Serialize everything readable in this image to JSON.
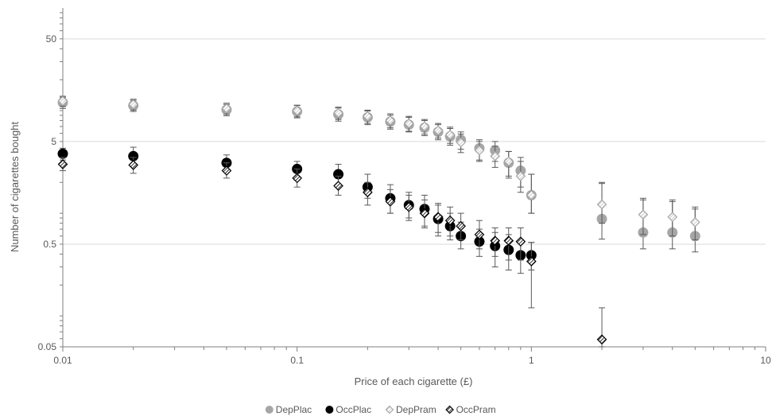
{
  "chart_data": {
    "type": "scatter",
    "title": "",
    "xlabel": "Price of each cigarette (£)",
    "ylabel": "Number of cigarettes bought",
    "x_scale": "log",
    "y_scale": "log",
    "xlim": [
      0.01,
      10
    ],
    "ylim": [
      0.05,
      100
    ],
    "x_ticks": [
      0.01,
      0.1,
      1,
      10
    ],
    "x_tick_labels": [
      "0.01",
      "0.1",
      "1",
      "10"
    ],
    "y_ticks": [
      0.05,
      0.5,
      5,
      50
    ],
    "y_tick_labels": [
      "0.05",
      "0.5",
      "5",
      "50"
    ],
    "grid": "horizontal major",
    "legend_position": "bottom",
    "series": [
      {
        "name": "DepPlac",
        "marker": "circle",
        "color": "#a6a6a6",
        "points": [
          {
            "x": 0.01,
            "y": 12.0,
            "lo": 10.5,
            "hi": 13.5
          },
          {
            "x": 0.02,
            "y": 11.2,
            "lo": 9.8,
            "hi": 12.6
          },
          {
            "x": 0.05,
            "y": 10.2,
            "lo": 8.9,
            "hi": 11.5
          },
          {
            "x": 0.1,
            "y": 9.8,
            "lo": 8.5,
            "hi": 11.2
          },
          {
            "x": 0.15,
            "y": 9.2,
            "lo": 7.9,
            "hi": 10.6
          },
          {
            "x": 0.2,
            "y": 8.6,
            "lo": 7.3,
            "hi": 9.9
          },
          {
            "x": 0.25,
            "y": 7.8,
            "lo": 6.6,
            "hi": 9.0
          },
          {
            "x": 0.3,
            "y": 7.3,
            "lo": 6.2,
            "hi": 8.6
          },
          {
            "x": 0.35,
            "y": 6.8,
            "lo": 5.7,
            "hi": 8.0
          },
          {
            "x": 0.4,
            "y": 6.2,
            "lo": 5.2,
            "hi": 7.3
          },
          {
            "x": 0.45,
            "y": 5.6,
            "lo": 4.6,
            "hi": 6.7
          },
          {
            "x": 0.5,
            "y": 5.2,
            "lo": 4.2,
            "hi": 6.2
          },
          {
            "x": 0.6,
            "y": 4.3,
            "lo": 3.3,
            "hi": 5.2
          },
          {
            "x": 0.7,
            "y": 4.1,
            "lo": 3.2,
            "hi": 5.0
          },
          {
            "x": 0.8,
            "y": 3.1,
            "lo": 2.2,
            "hi": 4.0
          },
          {
            "x": 0.9,
            "y": 2.6,
            "lo": 1.8,
            "hi": 3.5
          },
          {
            "x": 1.0,
            "y": 1.5,
            "lo": 1.0,
            "hi": 2.4
          },
          {
            "x": 2.0,
            "y": 0.88,
            "lo": 0.56,
            "hi": 2.0
          },
          {
            "x": 3.0,
            "y": 0.65,
            "lo": 0.45,
            "hi": 1.35
          },
          {
            "x": 4.0,
            "y": 0.65,
            "lo": 0.45,
            "hi": 1.3
          },
          {
            "x": 5.0,
            "y": 0.6,
            "lo": 0.42,
            "hi": 1.1
          }
        ]
      },
      {
        "name": "OccPlac",
        "marker": "circle",
        "color": "#000000",
        "points": [
          {
            "x": 0.01,
            "y": 3.8,
            "lo": 3.3,
            "hi": 4.3
          },
          {
            "x": 0.02,
            "y": 3.6,
            "lo": 3.0,
            "hi": 4.4
          },
          {
            "x": 0.05,
            "y": 3.1,
            "lo": 2.6,
            "hi": 3.7
          },
          {
            "x": 0.1,
            "y": 2.7,
            "lo": 2.1,
            "hi": 3.2
          },
          {
            "x": 0.15,
            "y": 2.4,
            "lo": 1.9,
            "hi": 3.0
          },
          {
            "x": 0.2,
            "y": 1.8,
            "lo": 1.4,
            "hi": 2.4
          },
          {
            "x": 0.25,
            "y": 1.4,
            "lo": 1.0,
            "hi": 1.9
          },
          {
            "x": 0.3,
            "y": 1.2,
            "lo": 0.9,
            "hi": 1.6
          },
          {
            "x": 0.35,
            "y": 1.1,
            "lo": 0.75,
            "hi": 1.5
          },
          {
            "x": 0.4,
            "y": 0.88,
            "lo": 0.6,
            "hi": 1.2
          },
          {
            "x": 0.45,
            "y": 0.75,
            "lo": 0.55,
            "hi": 1.0
          },
          {
            "x": 0.5,
            "y": 0.6,
            "lo": 0.45,
            "hi": 0.82
          },
          {
            "x": 0.6,
            "y": 0.53,
            "lo": 0.38,
            "hi": 0.7
          },
          {
            "x": 0.7,
            "y": 0.48,
            "lo": 0.3,
            "hi": 0.65
          },
          {
            "x": 0.8,
            "y": 0.44,
            "lo": 0.28,
            "hi": 0.62
          },
          {
            "x": 0.9,
            "y": 0.39,
            "lo": 0.26,
            "hi": 0.55
          },
          {
            "x": 1.0,
            "y": 0.39,
            "lo": 0.28,
            "hi": 0.52
          }
        ]
      },
      {
        "name": "DepPram",
        "marker": "diamond-hatched",
        "color": "#bfbfbf",
        "points": [
          {
            "x": 0.01,
            "y": 12.4,
            "lo": 11.0,
            "hi": 13.8
          },
          {
            "x": 0.02,
            "y": 11.5,
            "lo": 10.1,
            "hi": 12.9
          },
          {
            "x": 0.05,
            "y": 10.5,
            "lo": 9.2,
            "hi": 11.8
          },
          {
            "x": 0.1,
            "y": 10.0,
            "lo": 8.7,
            "hi": 11.3
          },
          {
            "x": 0.15,
            "y": 9.5,
            "lo": 8.2,
            "hi": 10.8
          },
          {
            "x": 0.2,
            "y": 8.8,
            "lo": 7.5,
            "hi": 10.1
          },
          {
            "x": 0.25,
            "y": 8.0,
            "lo": 6.8,
            "hi": 9.3
          },
          {
            "x": 0.3,
            "y": 7.5,
            "lo": 6.3,
            "hi": 8.8
          },
          {
            "x": 0.35,
            "y": 7.0,
            "lo": 5.9,
            "hi": 8.2
          },
          {
            "x": 0.4,
            "y": 6.4,
            "lo": 5.4,
            "hi": 7.5
          },
          {
            "x": 0.45,
            "y": 5.8,
            "lo": 4.8,
            "hi": 6.9
          },
          {
            "x": 0.5,
            "y": 4.9,
            "lo": 3.9,
            "hi": 5.9
          },
          {
            "x": 0.6,
            "y": 4.1,
            "lo": 3.2,
            "hi": 5.0
          },
          {
            "x": 0.7,
            "y": 3.6,
            "lo": 2.8,
            "hi": 4.5
          },
          {
            "x": 0.8,
            "y": 3.2,
            "lo": 2.3,
            "hi": 4.0
          },
          {
            "x": 0.9,
            "y": 2.3,
            "lo": 1.6,
            "hi": 3.2
          },
          {
            "x": 1.0,
            "y": 1.5,
            "lo": 1.0,
            "hi": 2.4
          },
          {
            "x": 2.0,
            "y": 1.22,
            "lo": 0.8,
            "hi": 1.95
          },
          {
            "x": 3.0,
            "y": 0.97,
            "lo": 0.62,
            "hi": 1.4
          },
          {
            "x": 4.0,
            "y": 0.92,
            "lo": 0.6,
            "hi": 1.35
          },
          {
            "x": 5.0,
            "y": 0.82,
            "lo": 0.55,
            "hi": 1.15
          }
        ]
      },
      {
        "name": "OccPram",
        "marker": "diamond-hatched",
        "color": "#000000",
        "points": [
          {
            "x": 0.01,
            "y": 3.0,
            "lo": 2.6,
            "hi": 3.5
          },
          {
            "x": 0.02,
            "y": 2.95,
            "lo": 2.45,
            "hi": 3.5
          },
          {
            "x": 0.05,
            "y": 2.6,
            "lo": 2.2,
            "hi": 3.1
          },
          {
            "x": 0.1,
            "y": 2.2,
            "lo": 1.8,
            "hi": 2.7
          },
          {
            "x": 0.15,
            "y": 1.85,
            "lo": 1.5,
            "hi": 2.3
          },
          {
            "x": 0.2,
            "y": 1.6,
            "lo": 1.2,
            "hi": 2.0
          },
          {
            "x": 0.25,
            "y": 1.3,
            "lo": 1.0,
            "hi": 1.7
          },
          {
            "x": 0.3,
            "y": 1.15,
            "lo": 0.85,
            "hi": 1.5
          },
          {
            "x": 0.35,
            "y": 1.0,
            "lo": 0.72,
            "hi": 1.35
          },
          {
            "x": 0.4,
            "y": 0.92,
            "lo": 0.65,
            "hi": 1.25
          },
          {
            "x": 0.45,
            "y": 0.85,
            "lo": 0.6,
            "hi": 1.15
          },
          {
            "x": 0.5,
            "y": 0.75,
            "lo": 0.55,
            "hi": 1.0
          },
          {
            "x": 0.6,
            "y": 0.62,
            "lo": 0.45,
            "hi": 0.85
          },
          {
            "x": 0.7,
            "y": 0.54,
            "lo": 0.38,
            "hi": 0.72
          },
          {
            "x": 0.8,
            "y": 0.54,
            "lo": 0.35,
            "hi": 0.72
          },
          {
            "x": 0.9,
            "y": 0.53,
            "lo": 0.35,
            "hi": 0.72
          },
          {
            "x": 1.0,
            "y": 0.34,
            "lo": 0.12,
            "hi": 0.52
          },
          {
            "x": 2.0,
            "y": 0.059,
            "lo": 0.05,
            "hi": 0.12
          }
        ]
      }
    ]
  }
}
